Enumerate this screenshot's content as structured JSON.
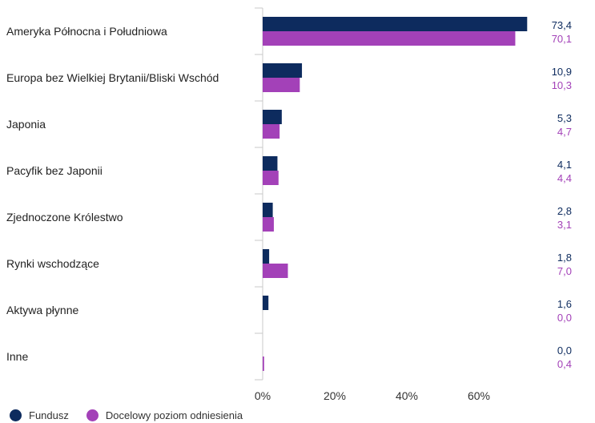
{
  "chart_data": {
    "type": "bar",
    "orientation": "horizontal",
    "categories": [
      "Ameryka Północna i Południowa",
      "Europa bez Wielkiej Brytanii/Bliski Wschód",
      "Japonia",
      "Pacyfik bez Japonii",
      "Zjednoczone Królestwo",
      "Rynki wschodzące",
      "Aktywa płynne",
      "Inne"
    ],
    "series": [
      {
        "name": "Fundusz",
        "color": "#0d2b5e",
        "values": [
          73.4,
          10.9,
          5.3,
          4.1,
          2.8,
          1.8,
          1.6,
          0.0
        ],
        "labels": [
          "73,4",
          "10,9",
          "5,3",
          "4,1",
          "2,8",
          "1,8",
          "1,6",
          "0,0"
        ]
      },
      {
        "name": "Docelowy poziom odniesienia",
        "color": "#a341b8",
        "values": [
          70.1,
          10.3,
          4.7,
          4.4,
          3.1,
          7.0,
          0.0,
          0.4
        ],
        "labels": [
          "70,1",
          "10,3",
          "4,7",
          "4,4",
          "3,1",
          "7,0",
          "0,0",
          "0,4"
        ]
      }
    ],
    "x_ticks": [
      0,
      20,
      40,
      60
    ],
    "x_tick_labels": [
      "0%",
      "20%",
      "40%",
      "60%"
    ],
    "xlim": [
      0,
      80
    ],
    "grid": false,
    "legend_position": "bottom-left"
  }
}
